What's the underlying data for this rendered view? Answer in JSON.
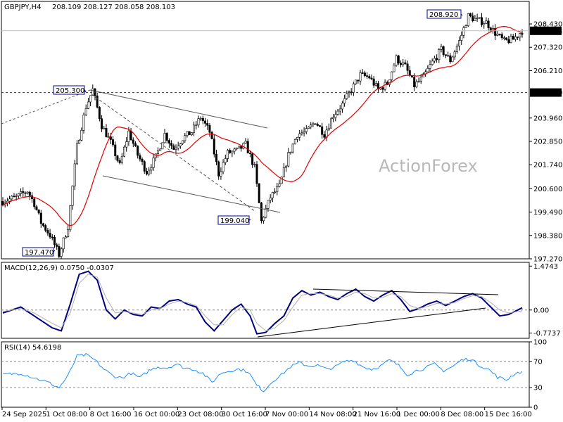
{
  "header": {
    "symbol": "GBPJPY,H4",
    "ohlc": "208.109 208.127 208.058 208.103"
  },
  "watermark": "ActionForex",
  "colors": {
    "candles": "#000000",
    "ma": "#e00000",
    "macd_main": "#000080",
    "macd_signal": "#b0b0b0",
    "rsi": "#1e90ff",
    "grid_dash": "#555555",
    "price_tag_bg": "#000000",
    "level_tag_bg": "#000000"
  },
  "chart_data": [
    {
      "type": "candlestick",
      "title": "GBPJPY,H4",
      "y_ticks": [
        "208.430",
        "207.320",
        "206.210",
        "205.170",
        "203.960",
        "202.850",
        "201.740",
        "200.600",
        "199.490",
        "198.380",
        "197.270"
      ],
      "ylim": [
        197.27,
        209.5
      ],
      "current_price": "208.103",
      "horizontal_level": "205.170",
      "annotations": [
        "208.920",
        "205.300",
        "199.040",
        "197.470"
      ],
      "x_ticks": [
        "24 Sep 2025",
        "1 Oct 08:00",
        "8 Oct 16:00",
        "16 Oct 00:00",
        "23 Oct 08:00",
        "30 Oct 16:00",
        "7 Nov 00:00",
        "14 Nov 08:00",
        "21 Nov 16:00",
        "1 Dec 00:00",
        "8 Dec 08:00",
        "15 Dec 16:00"
      ],
      "anchors": [
        {
          "t": 0,
          "p": 200.0
        },
        {
          "t": 6,
          "p": 200.2
        },
        {
          "t": 11,
          "p": 200.5
        },
        {
          "t": 14,
          "p": 199.9
        },
        {
          "t": 17,
          "p": 199.0
        },
        {
          "t": 21,
          "p": 198.4
        },
        {
          "t": 25,
          "p": 197.47
        },
        {
          "t": 29,
          "p": 198.8
        },
        {
          "t": 33,
          "p": 202.6
        },
        {
          "t": 37,
          "p": 204.5
        },
        {
          "t": 40,
          "p": 205.3
        },
        {
          "t": 44,
          "p": 203.6
        },
        {
          "t": 48,
          "p": 202.8
        },
        {
          "t": 52,
          "p": 201.7
        },
        {
          "t": 56,
          "p": 203.3
        },
        {
          "t": 60,
          "p": 202.2
        },
        {
          "t": 64,
          "p": 201.4
        },
        {
          "t": 68,
          "p": 202.1
        },
        {
          "t": 72,
          "p": 203.2
        },
        {
          "t": 76,
          "p": 202.5
        },
        {
          "t": 80,
          "p": 203.0
        },
        {
          "t": 84,
          "p": 203.3
        },
        {
          "t": 88,
          "p": 204.0
        },
        {
          "t": 92,
          "p": 203.3
        },
        {
          "t": 96,
          "p": 201.3
        },
        {
          "t": 100,
          "p": 202.3
        },
        {
          "t": 104,
          "p": 202.4
        },
        {
          "t": 108,
          "p": 202.7
        },
        {
          "t": 112,
          "p": 201.6
        },
        {
          "t": 115,
          "p": 199.04
        },
        {
          "t": 119,
          "p": 200.2
        },
        {
          "t": 123,
          "p": 200.7
        },
        {
          "t": 127,
          "p": 202.2
        },
        {
          "t": 131,
          "p": 203.2
        },
        {
          "t": 135,
          "p": 203.3
        },
        {
          "t": 139,
          "p": 203.8
        },
        {
          "t": 143,
          "p": 203.2
        },
        {
          "t": 147,
          "p": 204.1
        },
        {
          "t": 151,
          "p": 204.6
        },
        {
          "t": 155,
          "p": 205.3
        },
        {
          "t": 159,
          "p": 206.0
        },
        {
          "t": 163,
          "p": 205.9
        },
        {
          "t": 167,
          "p": 205.3
        },
        {
          "t": 171,
          "p": 205.6
        },
        {
          "t": 175,
          "p": 206.8
        },
        {
          "t": 179,
          "p": 206.4
        },
        {
          "t": 183,
          "p": 205.5
        },
        {
          "t": 187,
          "p": 205.9
        },
        {
          "t": 191,
          "p": 206.6
        },
        {
          "t": 195,
          "p": 207.2
        },
        {
          "t": 199,
          "p": 206.7
        },
        {
          "t": 203,
          "p": 207.6
        },
        {
          "t": 207,
          "p": 208.8
        },
        {
          "t": 211,
          "p": 208.6
        },
        {
          "t": 215,
          "p": 208.5
        },
        {
          "t": 219,
          "p": 208.0
        },
        {
          "t": 223,
          "p": 207.6
        },
        {
          "t": 227,
          "p": 207.7
        },
        {
          "t": 231,
          "p": 208.103
        }
      ]
    },
    {
      "type": "line",
      "title": "MACD(12,26,9) 0.0750 -0.0307",
      "y_ticks": [
        "1.4743",
        "0.00",
        "-0.7737"
      ],
      "ylim": [
        -0.95,
        1.6
      ],
      "series": [
        {
          "role": "main",
          "anchors": [
            [
              0,
              -0.1
            ],
            [
              8,
              0.1
            ],
            [
              14,
              -0.2
            ],
            [
              22,
              -0.6
            ],
            [
              26,
              -0.7
            ],
            [
              30,
              0.2
            ],
            [
              34,
              1.2
            ],
            [
              38,
              1.3
            ],
            [
              42,
              1.0
            ],
            [
              46,
              0.0
            ],
            [
              50,
              -0.3
            ],
            [
              54,
              0.0
            ],
            [
              58,
              -0.15
            ],
            [
              62,
              -0.2
            ],
            [
              66,
              0.1
            ],
            [
              70,
              0.05
            ],
            [
              74,
              0.3
            ],
            [
              78,
              0.35
            ],
            [
              82,
              0.2
            ],
            [
              86,
              0.1
            ],
            [
              90,
              -0.4
            ],
            [
              94,
              -0.7
            ],
            [
              98,
              -0.35
            ],
            [
              102,
              0.0
            ],
            [
              106,
              0.2
            ],
            [
              110,
              -0.2
            ],
            [
              113,
              -0.8
            ],
            [
              117,
              -0.75
            ],
            [
              121,
              -0.45
            ],
            [
              125,
              -0.2
            ],
            [
              129,
              0.4
            ],
            [
              133,
              0.65
            ],
            [
              137,
              0.5
            ],
            [
              141,
              0.6
            ],
            [
              145,
              0.45
            ],
            [
              149,
              0.35
            ],
            [
              153,
              0.55
            ],
            [
              157,
              0.7
            ],
            [
              161,
              0.45
            ],
            [
              165,
              0.3
            ],
            [
              169,
              0.5
            ],
            [
              173,
              0.65
            ],
            [
              177,
              0.35
            ],
            [
              181,
              -0.05
            ],
            [
              185,
              0.05
            ],
            [
              189,
              0.2
            ],
            [
              193,
              0.3
            ],
            [
              197,
              0.15
            ],
            [
              201,
              0.3
            ],
            [
              205,
              0.45
            ],
            [
              209,
              0.55
            ],
            [
              213,
              0.4
            ],
            [
              217,
              0.1
            ],
            [
              221,
              -0.2
            ],
            [
              225,
              -0.15
            ],
            [
              229,
              0.0
            ],
            [
              231,
              0.075
            ]
          ]
        },
        {
          "role": "signal",
          "anchors": [
            [
              0,
              -0.05
            ],
            [
              8,
              0.05
            ],
            [
              14,
              -0.1
            ],
            [
              22,
              -0.45
            ],
            [
              26,
              -0.6
            ],
            [
              30,
              -0.1
            ],
            [
              34,
              0.9
            ],
            [
              38,
              1.2
            ],
            [
              42,
              1.1
            ],
            [
              46,
              0.4
            ],
            [
              50,
              -0.1
            ],
            [
              54,
              -0.05
            ],
            [
              58,
              -0.1
            ],
            [
              62,
              -0.15
            ],
            [
              66,
              0.0
            ],
            [
              70,
              0.05
            ],
            [
              74,
              0.2
            ],
            [
              78,
              0.3
            ],
            [
              82,
              0.25
            ],
            [
              86,
              0.15
            ],
            [
              90,
              -0.2
            ],
            [
              94,
              -0.5
            ],
            [
              98,
              -0.5
            ],
            [
              102,
              -0.15
            ],
            [
              106,
              0.1
            ],
            [
              110,
              0.0
            ],
            [
              113,
              -0.45
            ],
            [
              117,
              -0.7
            ],
            [
              121,
              -0.6
            ],
            [
              125,
              -0.35
            ],
            [
              129,
              0.1
            ],
            [
              133,
              0.5
            ],
            [
              137,
              0.55
            ],
            [
              141,
              0.55
            ],
            [
              145,
              0.5
            ],
            [
              149,
              0.4
            ],
            [
              153,
              0.45
            ],
            [
              157,
              0.6
            ],
            [
              161,
              0.55
            ],
            [
              165,
              0.4
            ],
            [
              169,
              0.42
            ],
            [
              173,
              0.55
            ],
            [
              177,
              0.45
            ],
            [
              181,
              0.15
            ],
            [
              185,
              0.05
            ],
            [
              189,
              0.12
            ],
            [
              193,
              0.22
            ],
            [
              197,
              0.2
            ],
            [
              201,
              0.25
            ],
            [
              205,
              0.38
            ],
            [
              209,
              0.48
            ],
            [
              213,
              0.45
            ],
            [
              217,
              0.25
            ],
            [
              221,
              0.0
            ],
            [
              225,
              -0.1
            ],
            [
              229,
              -0.05
            ],
            [
              231,
              -0.03
            ]
          ]
        }
      ]
    },
    {
      "type": "line",
      "title": "RSI(14) 54.6198",
      "y_ticks": [
        "100",
        "70",
        "30",
        "0"
      ],
      "ylim": [
        0,
        100
      ],
      "series": [
        {
          "role": "rsi",
          "anchors": [
            [
              0,
              50
            ],
            [
              8,
              52
            ],
            [
              14,
              45
            ],
            [
              20,
              38
            ],
            [
              25,
              30
            ],
            [
              29,
              48
            ],
            [
              33,
              78
            ],
            [
              37,
              80
            ],
            [
              41,
              72
            ],
            [
              45,
              58
            ],
            [
              49,
              48
            ],
            [
              53,
              45
            ],
            [
              57,
              52
            ],
            [
              61,
              45
            ],
            [
              65,
              56
            ],
            [
              69,
              62
            ],
            [
              73,
              60
            ],
            [
              77,
              66
            ],
            [
              81,
              60
            ],
            [
              85,
              58
            ],
            [
              89,
              52
            ],
            [
              93,
              38
            ],
            [
              97,
              52
            ],
            [
              101,
              56
            ],
            [
              105,
              58
            ],
            [
              109,
              55
            ],
            [
              113,
              33
            ],
            [
              116,
              25
            ],
            [
              120,
              40
            ],
            [
              124,
              50
            ],
            [
              128,
              62
            ],
            [
              132,
              68
            ],
            [
              136,
              63
            ],
            [
              140,
              64
            ],
            [
              144,
              58
            ],
            [
              148,
              62
            ],
            [
              152,
              70
            ],
            [
              156,
              72
            ],
            [
              160,
              62
            ],
            [
              164,
              58
            ],
            [
              168,
              63
            ],
            [
              172,
              72
            ],
            [
              176,
              64
            ],
            [
              180,
              50
            ],
            [
              184,
              56
            ],
            [
              188,
              60
            ],
            [
              192,
              66
            ],
            [
              196,
              56
            ],
            [
              200,
              62
            ],
            [
              204,
              72
            ],
            [
              208,
              74
            ],
            [
              212,
              64
            ],
            [
              216,
              58
            ],
            [
              220,
              46
            ],
            [
              224,
              42
            ],
            [
              228,
              52
            ],
            [
              231,
              54.62
            ]
          ]
        }
      ]
    }
  ]
}
